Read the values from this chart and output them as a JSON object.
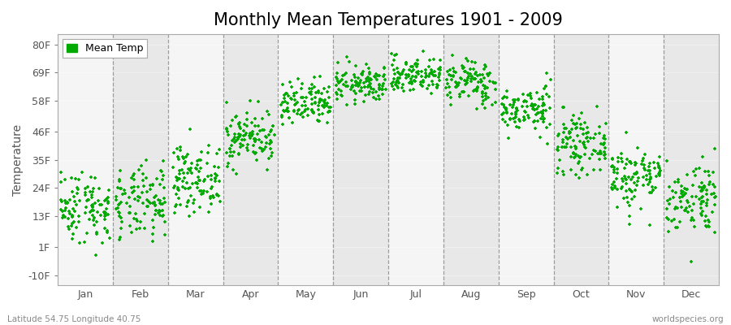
{
  "title": "Monthly Mean Temperatures 1901 - 2009",
  "ylabel": "Temperature",
  "yticks": [
    -10,
    1,
    13,
    24,
    35,
    46,
    58,
    69,
    80
  ],
  "ytick_labels": [
    "-10F",
    "1F",
    "13F",
    "24F",
    "35F",
    "46F",
    "58F",
    "69F",
    "80F"
  ],
  "ylim": [
    -14,
    84
  ],
  "months": [
    "Jan",
    "Feb",
    "Mar",
    "Apr",
    "May",
    "Jun",
    "Jul",
    "Aug",
    "Sep",
    "Oct",
    "Nov",
    "Dec"
  ],
  "month_mean_temps_C": [
    -8.5,
    -8.0,
    -2.5,
    6.5,
    13.5,
    18.0,
    20.0,
    18.5,
    12.5,
    5.0,
    -2.0,
    -6.5
  ],
  "month_std_temps_C": [
    4.0,
    4.0,
    3.5,
    3.0,
    2.5,
    2.0,
    2.0,
    2.5,
    2.5,
    3.0,
    3.5,
    4.0
  ],
  "n_years": 109,
  "dot_color": "#00AA00",
  "dot_size": 12,
  "background_color": "#FFFFFF",
  "plot_bg_color": "#F0F0F0",
  "band_color_light": "#F5F5F5",
  "band_color_dark": "#E8E8E8",
  "title_fontsize": 15,
  "label_fontsize": 10,
  "tick_fontsize": 9,
  "footer_left": "Latitude 54.75 Longitude 40.75",
  "footer_right": "worldspecies.org",
  "legend_label": "Mean Temp",
  "dash_color": "#888888"
}
